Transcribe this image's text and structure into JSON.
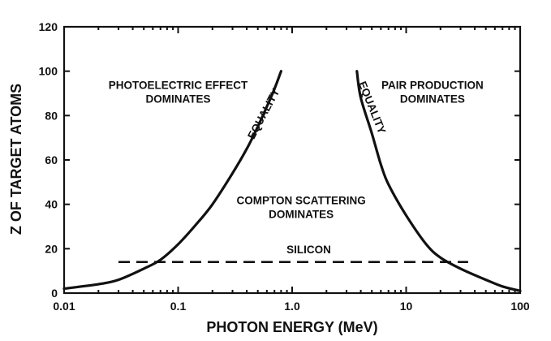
{
  "chart_data": {
    "type": "line",
    "title": "",
    "xlabel": "PHOTON ENERGY (MeV)",
    "ylabel": "Z OF TARGET ATOMS",
    "xscale": "log",
    "xlim": [
      0.01,
      100
    ],
    "ylim": [
      0,
      120
    ],
    "x_ticks": [
      0.01,
      0.1,
      1.0,
      10,
      100
    ],
    "x_tick_labels": [
      "0.01",
      "0.1",
      "1.0",
      "10",
      "100"
    ],
    "y_ticks": [
      0,
      20,
      40,
      60,
      80,
      100,
      120
    ],
    "y_tick_labels": [
      "0",
      "20",
      "40",
      "60",
      "80",
      "100",
      "120"
    ],
    "grid": false,
    "legend": "none",
    "series": [
      {
        "style": "solid",
        "x": [
          0.01,
          0.02,
          0.03,
          0.05,
          0.07,
          0.1,
          0.15,
          0.2,
          0.3,
          0.4,
          0.5,
          0.6,
          0.7,
          0.8
        ],
        "y": [
          2,
          4,
          6,
          11,
          15,
          22,
          32,
          40,
          54,
          65,
          75,
          84,
          92,
          100
        ]
      },
      {
        "style": "solid",
        "x": [
          3.7,
          4,
          5,
          6,
          7,
          10,
          15,
          20,
          30,
          50,
          70,
          100
        ],
        "y": [
          100,
          88,
          72,
          58,
          49,
          35,
          22,
          16,
          11,
          6,
          3,
          1
        ]
      },
      {
        "style": "dashed",
        "x": [
          0.03,
          35
        ],
        "y": [
          14,
          14
        ]
      }
    ],
    "annotations": [
      {
        "lines": [
          "PHOTOELECTRIC EFFECT",
          "DOMINATES"
        ],
        "x": 0.1,
        "y": 92
      },
      {
        "lines": [
          "PAIR PRODUCTION",
          "DOMINATES"
        ],
        "x": 17,
        "y": 92
      },
      {
        "lines": [
          "COMPTON SCATTERING",
          "DOMINATES"
        ],
        "x": 1.2,
        "y": 40
      },
      {
        "lines": [
          "SILICON"
        ],
        "x": 1.4,
        "y": 18
      },
      {
        "lines": [
          "EQUALITY"
        ],
        "x": 0.6,
        "y": 80,
        "rotate": -62
      },
      {
        "lines": [
          "EQUALITY"
        ],
        "x": 4.7,
        "y": 83,
        "rotate": 68
      }
    ]
  }
}
